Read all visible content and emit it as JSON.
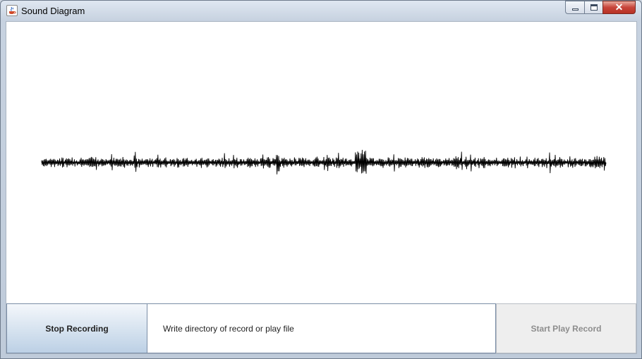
{
  "window": {
    "title": "Sound Diagram",
    "close_glyph": "✕",
    "icon": "java-cup-icon"
  },
  "controls": {
    "stop_recording_label": "Stop Recording",
    "directory_text": "Write directory of record or play file",
    "start_play_label": "Start Play Record",
    "start_play_enabled": false
  },
  "waveform": {
    "color": "#000000",
    "description_icon": "audio-waveform"
  },
  "colors": {
    "title_gradient_top": "#dfe7f1",
    "close_button": "#c7443a",
    "stop_button": "#d5e2ef",
    "disabled_button_text": "#8d8d8d"
  }
}
